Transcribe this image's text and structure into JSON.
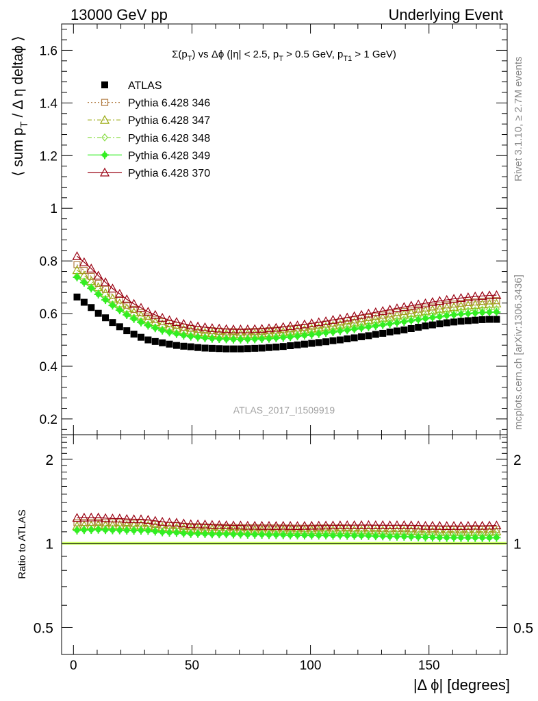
{
  "header": {
    "left": "13000 GeV pp",
    "right": "Underlying Event"
  },
  "side_text": {
    "rivet": "Rivet 3.1.10, ≥ 2.7M events",
    "mcplots": "mcplots.cern.ch [arXiv:1306.3436]"
  },
  "watermark": "ATLAS_2017_I1509919",
  "chart_data": [
    {
      "type": "scatter",
      "title": "Σ(p_T) vs Δϕ (|η| < 2.5, p_T > 0.5 GeV, p_T1 > 1 GeV)",
      "ylabel": "⟨ sum p_T / Δ η deltaϕ ⟩",
      "xlabel": "",
      "xlim": [
        -5,
        183
      ],
      "ylim": [
        0.14,
        1.7
      ],
      "y_ticks": [
        0.2,
        0.4,
        0.6,
        0.8,
        1,
        1.2,
        1.4,
        1.6
      ],
      "x_ticks": [
        0,
        50,
        100,
        150
      ],
      "legend_placement": "top-left",
      "series": [
        {
          "name": "ATLAS",
          "color": "#000000",
          "marker": "filled-square",
          "line": "none",
          "values": [
            0.663,
            0.643,
            0.623,
            0.601,
            0.584,
            0.566,
            0.55,
            0.535,
            0.522,
            0.51,
            0.5,
            0.494,
            0.489,
            0.484,
            0.479,
            0.476,
            0.474,
            0.471,
            0.469,
            0.468,
            0.467,
            0.466,
            0.466,
            0.466,
            0.467,
            0.468,
            0.469,
            0.471,
            0.473,
            0.475,
            0.478,
            0.481,
            0.484,
            0.487,
            0.49,
            0.493,
            0.497,
            0.5,
            0.504,
            0.508,
            0.512,
            0.516,
            0.521,
            0.525,
            0.53,
            0.534,
            0.538,
            0.543,
            0.548,
            0.553,
            0.557,
            0.561,
            0.565,
            0.568,
            0.571,
            0.573,
            0.575,
            0.577,
            0.578,
            0.578
          ]
        },
        {
          "name": "Pythia 6.428 346",
          "color": "#b07a40",
          "marker": "open-square",
          "line": "dotted",
          "values": [
            0.786,
            0.764,
            0.741,
            0.715,
            0.692,
            0.67,
            0.652,
            0.632,
            0.616,
            0.603,
            0.59,
            0.578,
            0.569,
            0.561,
            0.555,
            0.548,
            0.544,
            0.54,
            0.537,
            0.535,
            0.533,
            0.531,
            0.531,
            0.53,
            0.531,
            0.532,
            0.533,
            0.535,
            0.537,
            0.539,
            0.542,
            0.545,
            0.548,
            0.552,
            0.556,
            0.56,
            0.564,
            0.568,
            0.572,
            0.576,
            0.581,
            0.585,
            0.59,
            0.594,
            0.599,
            0.604,
            0.608,
            0.613,
            0.617,
            0.621,
            0.625,
            0.629,
            0.633,
            0.636,
            0.639,
            0.642,
            0.644,
            0.646,
            0.648,
            0.649
          ]
        },
        {
          "name": "Pythia 6.428 347",
          "color": "#9aaa10",
          "marker": "open-triangle",
          "line": "dash-dot",
          "values": [
            0.765,
            0.745,
            0.723,
            0.7,
            0.678,
            0.657,
            0.639,
            0.62,
            0.605,
            0.592,
            0.579,
            0.568,
            0.559,
            0.551,
            0.545,
            0.539,
            0.535,
            0.531,
            0.528,
            0.526,
            0.524,
            0.523,
            0.522,
            0.522,
            0.522,
            0.523,
            0.524,
            0.526,
            0.528,
            0.53,
            0.533,
            0.536,
            0.539,
            0.543,
            0.546,
            0.55,
            0.554,
            0.558,
            0.562,
            0.566,
            0.57,
            0.575,
            0.579,
            0.584,
            0.588,
            0.593,
            0.597,
            0.602,
            0.606,
            0.61,
            0.614,
            0.618,
            0.622,
            0.625,
            0.628,
            0.631,
            0.633,
            0.635,
            0.637,
            0.638
          ]
        },
        {
          "name": "Pythia 6.428 348",
          "color": "#88dd44",
          "marker": "open-diamond",
          "line": "dash-dot",
          "values": [
            0.742,
            0.722,
            0.7,
            0.677,
            0.656,
            0.635,
            0.617,
            0.599,
            0.585,
            0.571,
            0.559,
            0.548,
            0.539,
            0.532,
            0.526,
            0.52,
            0.516,
            0.512,
            0.51,
            0.508,
            0.507,
            0.506,
            0.505,
            0.505,
            0.506,
            0.507,
            0.508,
            0.51,
            0.512,
            0.514,
            0.517,
            0.52,
            0.523,
            0.526,
            0.53,
            0.534,
            0.537,
            0.541,
            0.545,
            0.549,
            0.553,
            0.557,
            0.562,
            0.566,
            0.571,
            0.575,
            0.579,
            0.583,
            0.588,
            0.592,
            0.596,
            0.599,
            0.603,
            0.606,
            0.609,
            0.611,
            0.613,
            0.615,
            0.616,
            0.617
          ]
        },
        {
          "name": "Pythia 6.428 349",
          "color": "#33ee22",
          "marker": "filled-cross-circle",
          "line": "solid",
          "values": [
            0.738,
            0.718,
            0.696,
            0.673,
            0.652,
            0.631,
            0.613,
            0.595,
            0.58,
            0.567,
            0.555,
            0.545,
            0.536,
            0.529,
            0.523,
            0.517,
            0.513,
            0.51,
            0.507,
            0.505,
            0.504,
            0.503,
            0.502,
            0.502,
            0.502,
            0.503,
            0.504,
            0.505,
            0.507,
            0.509,
            0.511,
            0.514,
            0.517,
            0.52,
            0.523,
            0.527,
            0.53,
            0.534,
            0.537,
            0.541,
            0.545,
            0.549,
            0.553,
            0.557,
            0.561,
            0.565,
            0.569,
            0.573,
            0.577,
            0.581,
            0.585,
            0.588,
            0.592,
            0.595,
            0.598,
            0.6,
            0.602,
            0.604,
            0.605,
            0.606
          ]
        },
        {
          "name": "Pythia 6.428 370",
          "color": "#990011",
          "marker": "open-triangle",
          "line": "solid",
          "values": [
            0.818,
            0.795,
            0.771,
            0.744,
            0.719,
            0.695,
            0.675,
            0.654,
            0.637,
            0.622,
            0.607,
            0.595,
            0.584,
            0.575,
            0.568,
            0.561,
            0.555,
            0.551,
            0.548,
            0.545,
            0.543,
            0.541,
            0.54,
            0.54,
            0.54,
            0.541,
            0.542,
            0.544,
            0.546,
            0.549,
            0.552,
            0.555,
            0.559,
            0.563,
            0.567,
            0.571,
            0.576,
            0.58,
            0.585,
            0.59,
            0.595,
            0.6,
            0.605,
            0.61,
            0.615,
            0.62,
            0.625,
            0.63,
            0.635,
            0.639,
            0.644,
            0.648,
            0.652,
            0.656,
            0.659,
            0.662,
            0.665,
            0.667,
            0.669,
            0.67
          ]
        }
      ]
    },
    {
      "type": "scatter",
      "title": "",
      "ylabel": "Ratio to ATLAS",
      "xlabel": "|Δ ϕ| [degrees]",
      "xlim": [
        -5,
        183
      ],
      "ylim_log": [
        0.4,
        2.45
      ],
      "y_scale": "log",
      "y_ticks": [
        0.5,
        1,
        2
      ],
      "x_ticks": [
        0,
        50,
        100,
        150
      ],
      "reference_band": {
        "value": 1.0,
        "color": "#ccff66"
      },
      "series_source": "ratio of each Pythia series to ATLAS"
    }
  ]
}
